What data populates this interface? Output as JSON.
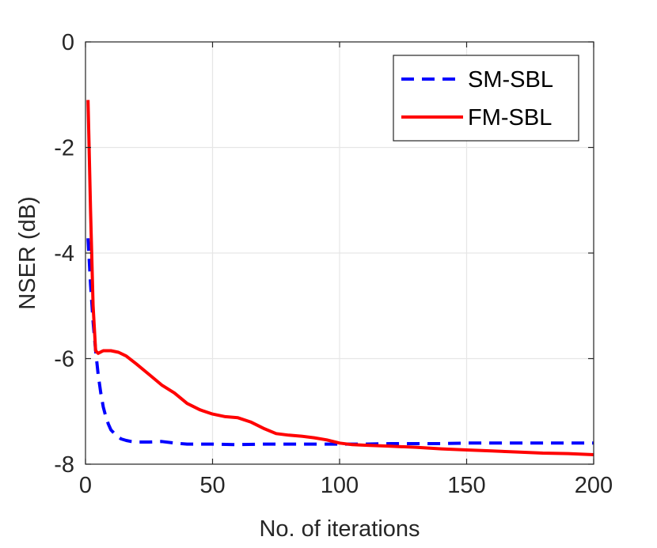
{
  "chart_data": {
    "type": "line",
    "title": "",
    "xlabel": "No. of iterations",
    "ylabel": "NSER (dB)",
    "xlim": [
      0,
      200
    ],
    "ylim": [
      -8,
      0
    ],
    "xticks": [
      0,
      50,
      100,
      150,
      200
    ],
    "yticks": [
      0,
      -2,
      -4,
      -6,
      -8
    ],
    "xtick_labels": [
      "0",
      "50",
      "100",
      "150",
      "200"
    ],
    "ytick_labels": [
      "0",
      "-2",
      "-4",
      "-6",
      "-8"
    ],
    "grid": true,
    "legend_position": "top-right",
    "series": [
      {
        "name": "SM-SBL",
        "color": "#0000ff",
        "style": "dashed",
        "points": [
          [
            1,
            -3.72
          ],
          [
            2,
            -4.6
          ],
          [
            3,
            -5.3
          ],
          [
            4,
            -5.85
          ],
          [
            5,
            -6.3
          ],
          [
            6,
            -6.65
          ],
          [
            7,
            -6.92
          ],
          [
            8,
            -7.1
          ],
          [
            9,
            -7.24
          ],
          [
            10,
            -7.35
          ],
          [
            12,
            -7.45
          ],
          [
            14,
            -7.52
          ],
          [
            16,
            -7.55
          ],
          [
            18,
            -7.57
          ],
          [
            20,
            -7.58
          ],
          [
            25,
            -7.58
          ],
          [
            30,
            -7.57
          ],
          [
            35,
            -7.6
          ],
          [
            40,
            -7.62
          ],
          [
            50,
            -7.62
          ],
          [
            60,
            -7.63
          ],
          [
            70,
            -7.62
          ],
          [
            80,
            -7.62
          ],
          [
            90,
            -7.62
          ],
          [
            100,
            -7.62
          ],
          [
            110,
            -7.62
          ],
          [
            120,
            -7.61
          ],
          [
            130,
            -7.61
          ],
          [
            140,
            -7.61
          ],
          [
            150,
            -7.6
          ],
          [
            160,
            -7.6
          ],
          [
            170,
            -7.6
          ],
          [
            180,
            -7.6
          ],
          [
            190,
            -7.6
          ],
          [
            200,
            -7.6
          ]
        ]
      },
      {
        "name": "FM-SBL",
        "color": "#ff0000",
        "style": "solid",
        "points": [
          [
            1,
            -1.1
          ],
          [
            2,
            -3.2
          ],
          [
            3,
            -5.0
          ],
          [
            4,
            -5.85
          ],
          [
            5,
            -5.9
          ],
          [
            7,
            -5.85
          ],
          [
            10,
            -5.85
          ],
          [
            13,
            -5.88
          ],
          [
            16,
            -5.95
          ],
          [
            20,
            -6.1
          ],
          [
            25,
            -6.3
          ],
          [
            30,
            -6.5
          ],
          [
            35,
            -6.65
          ],
          [
            40,
            -6.85
          ],
          [
            45,
            -6.97
          ],
          [
            50,
            -7.05
          ],
          [
            55,
            -7.1
          ],
          [
            60,
            -7.12
          ],
          [
            65,
            -7.2
          ],
          [
            70,
            -7.32
          ],
          [
            75,
            -7.42
          ],
          [
            80,
            -7.45
          ],
          [
            85,
            -7.47
          ],
          [
            90,
            -7.5
          ],
          [
            95,
            -7.54
          ],
          [
            100,
            -7.6
          ],
          [
            105,
            -7.63
          ],
          [
            110,
            -7.64
          ],
          [
            120,
            -7.66
          ],
          [
            130,
            -7.68
          ],
          [
            140,
            -7.71
          ],
          [
            150,
            -7.73
          ],
          [
            160,
            -7.75
          ],
          [
            170,
            -7.77
          ],
          [
            180,
            -7.79
          ],
          [
            190,
            -7.8
          ],
          [
            200,
            -7.82
          ]
        ]
      }
    ]
  }
}
